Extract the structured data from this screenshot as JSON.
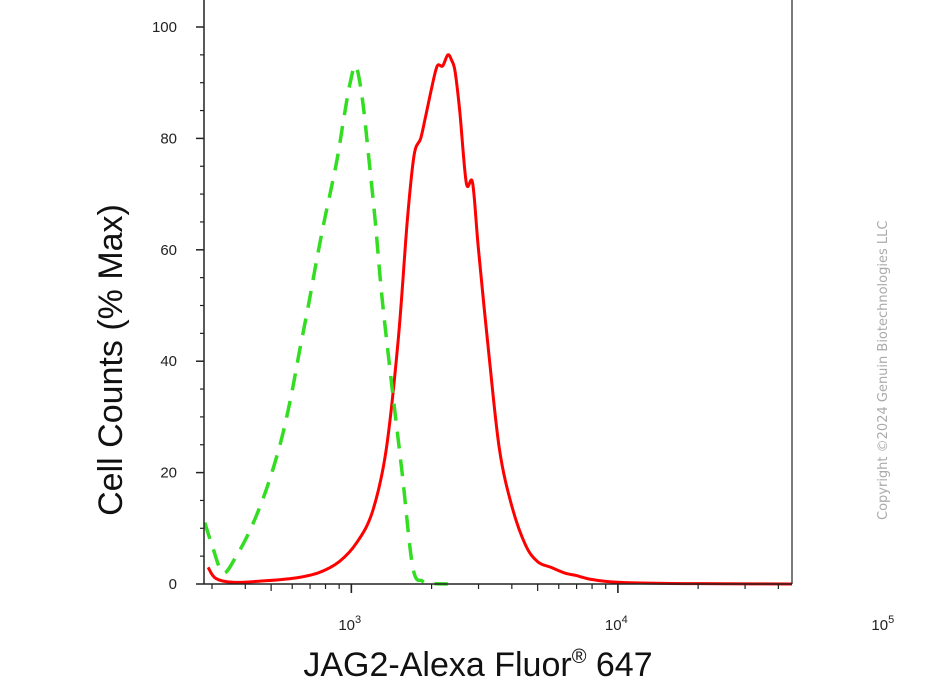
{
  "chart_data": {
    "type": "line",
    "title": "",
    "xlabel": "JAG2-Alexa Fluor",
    "xlabel_superscript": "®",
    "xlabel_suffix": " 647",
    "ylabel": "Cell Counts (% Max)",
    "x_scale": "log",
    "xlim": [
      280,
      45000
    ],
    "ylim": [
      0,
      100
    ],
    "x_ticks": [
      {
        "value": 1000,
        "base": "10",
        "exp": "3"
      },
      {
        "value": 10000,
        "base": "10",
        "exp": "4"
      },
      {
        "value": 100000,
        "base": "10",
        "exp": "5"
      }
    ],
    "y_ticks": [
      0,
      20,
      40,
      60,
      80,
      100
    ],
    "grid": false,
    "legend": "none",
    "series": [
      {
        "color": "#ff0000",
        "style": "solid",
        "x": [
          290,
          310,
          360,
          450,
          600,
          750,
          900,
          1050,
          1200,
          1350,
          1500,
          1620,
          1720,
          1820,
          1900,
          2000,
          2100,
          2200,
          2300,
          2380,
          2450,
          2550,
          2700,
          2850,
          3000,
          3300,
          3600,
          4000,
          4500,
          5000,
          5600,
          6300,
          7000,
          8000,
          10000,
          15000,
          25000,
          45000
        ],
        "y": [
          3,
          1,
          0.3,
          0.5,
          1,
          2,
          4,
          7.5,
          13,
          24,
          44,
          65,
          77,
          80,
          84,
          89,
          93,
          93,
          95,
          94,
          92,
          85,
          72,
          72,
          60,
          40,
          24,
          14,
          7,
          4,
          3,
          2,
          1.5,
          0.8,
          0.3,
          0.1,
          0.05,
          0
        ]
      },
      {
        "color": "#33dd22",
        "style": "dashed",
        "x": [
          282,
          300,
          330,
          370,
          420,
          480,
          540,
          590,
          640,
          690,
          740,
          790,
          840,
          890,
          940,
          990,
          1040,
          1100,
          1160,
          1230,
          1300,
          1400,
          1550,
          1700,
          1850,
          2000,
          2300
        ],
        "y": [
          11,
          7,
          2,
          5,
          10,
          17,
          25,
          33,
          42,
          50,
          58,
          65,
          71,
          77,
          84,
          90,
          93,
          87,
          77,
          65,
          52,
          38,
          20,
          3,
          0.5,
          0.1,
          0
        ]
      }
    ]
  },
  "watermark": "Copyright ©2024 Genuin Biotechnologies LLC"
}
